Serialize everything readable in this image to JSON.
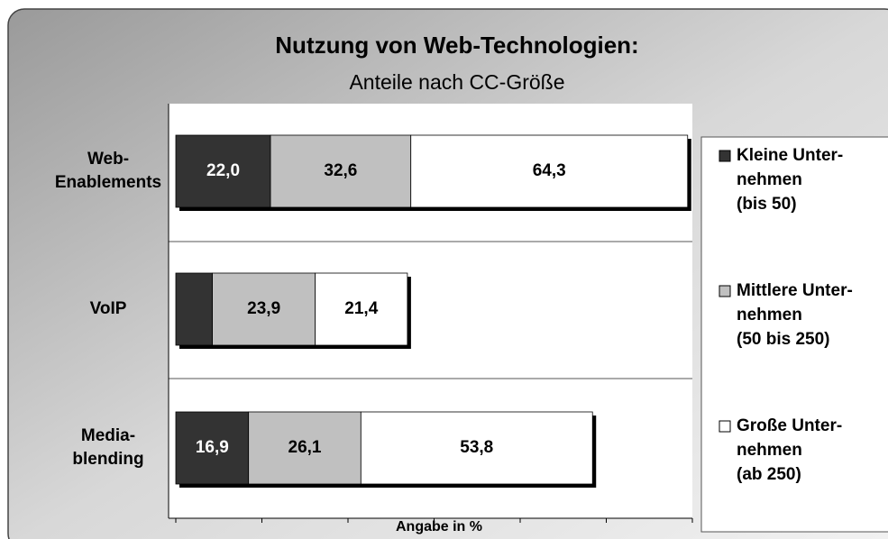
{
  "chart_data": {
    "type": "stacked-bar-horizontal",
    "title": "Nutzung von Web-Technologien:",
    "subtitle": "Anteile nach CC-Größe",
    "xlabel": "Angabe in %",
    "categories": [
      "Web-\nEnablements",
      "VoIP",
      "Media-\nblending"
    ],
    "series": [
      {
        "name": "Kleine Unter-\nnehmen\n(bis 50)",
        "color": "#333333",
        "values": [
          22.0,
          8.5,
          16.9
        ],
        "value_labels": [
          "22,0",
          null,
          "16,9"
        ]
      },
      {
        "name": "Mittlere Unter-\nnehmen\n(50 bis 250)",
        "color": "#c0c0c0",
        "values": [
          32.6,
          23.9,
          26.1
        ],
        "value_labels": [
          "32,6",
          "23,9",
          "26,1"
        ]
      },
      {
        "name": "Große Unter-\nnehmen\n(ab 250)",
        "color": "#ffffff",
        "values": [
          64.3,
          21.4,
          53.8
        ],
        "value_labels": [
          "64,3",
          "21,4",
          "53,8"
        ]
      }
    ],
    "xlim": [
      0,
      120
    ],
    "xticks": [
      0,
      20,
      40,
      60,
      80,
      100,
      120
    ]
  }
}
